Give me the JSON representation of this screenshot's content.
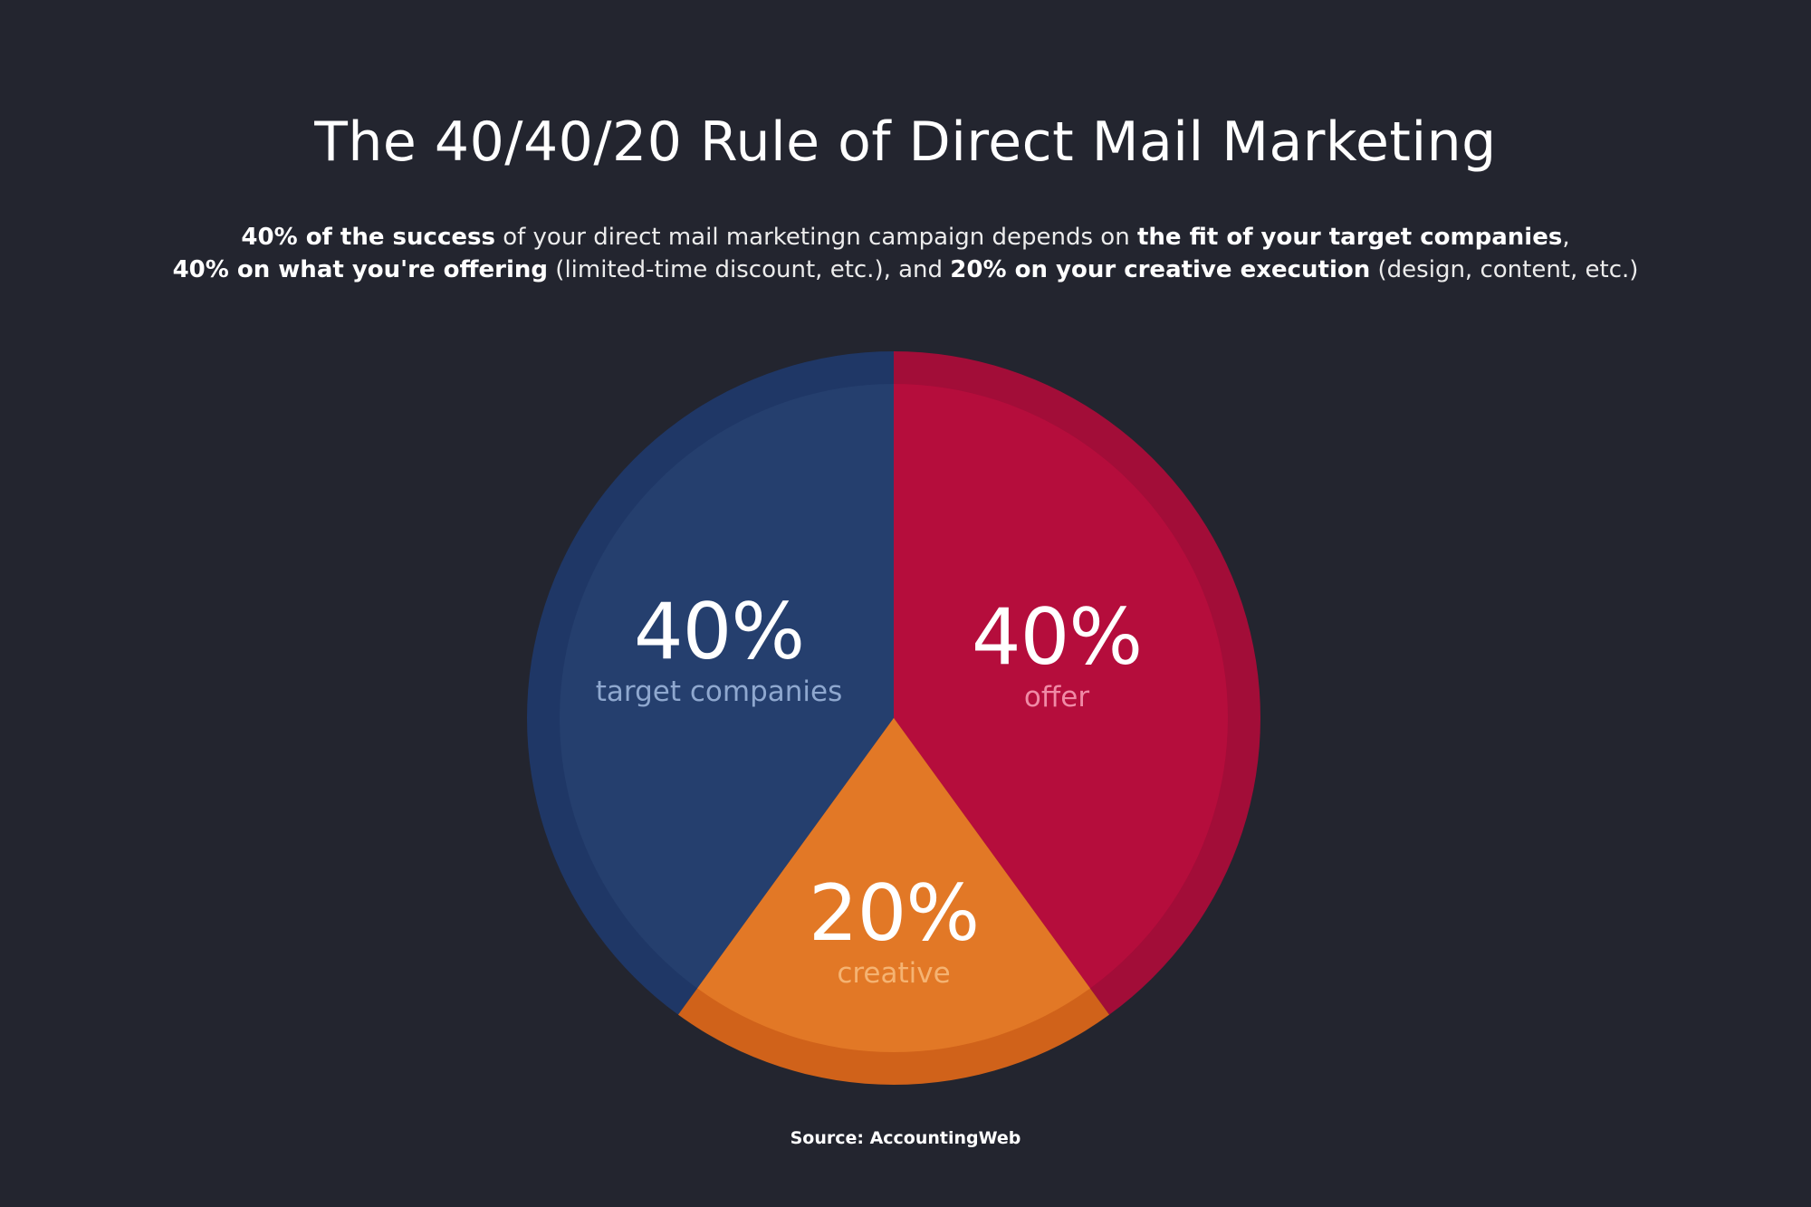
{
  "title": "The 40/40/20 Rule of Direct Mail Marketing",
  "subtitle": {
    "line1": [
      {
        "text": "40% of the success",
        "bold": true
      },
      {
        "text": " of your direct mail marketingn campaign depends on ",
        "bold": false
      },
      {
        "text": "the fit of your target companies",
        "bold": true
      },
      {
        "text": ",",
        "bold": false
      }
    ],
    "line2": [
      {
        "text": "40% on what you're offering",
        "bold": true
      },
      {
        "text": " (limited-time discount, etc.), and ",
        "bold": false
      },
      {
        "text": "20% on your creative execution",
        "bold": true
      },
      {
        "text": " (design, content, etc.)",
        "bold": false
      }
    ]
  },
  "source": "Source: AccountingWeb",
  "colors": {
    "background": "#23252f",
    "target_companies": "#253f6e",
    "target_companies_ring": "#1f3766",
    "target_companies_label": "#8fa8cf",
    "offer": "#b50d3c",
    "offer_ring": "#a20d38",
    "offer_label": "#f08aa6",
    "creative": "#e27826",
    "creative_ring": "#d0621a",
    "creative_label": "#f5b372"
  },
  "slices": [
    {
      "pct": "40%",
      "name": "target companies"
    },
    {
      "pct": "40%",
      "name": "offer"
    },
    {
      "pct": "20%",
      "name": "creative"
    }
  ],
  "chart_data": {
    "type": "pie",
    "title": "The 40/40/20 Rule of Direct Mail Marketing",
    "categories": [
      "target companies",
      "offer",
      "creative"
    ],
    "values": [
      40,
      40,
      20
    ],
    "labels": [
      "40%",
      "40%",
      "20%"
    ],
    "colors": [
      "#253f6e",
      "#b50d3c",
      "#e27826"
    ],
    "start_angle_deg": 0,
    "direction": "clockwise from 12 o'clock: offer, creative, target companies",
    "legend": "none (labels inside slices)",
    "source": "Source: AccountingWeb"
  }
}
